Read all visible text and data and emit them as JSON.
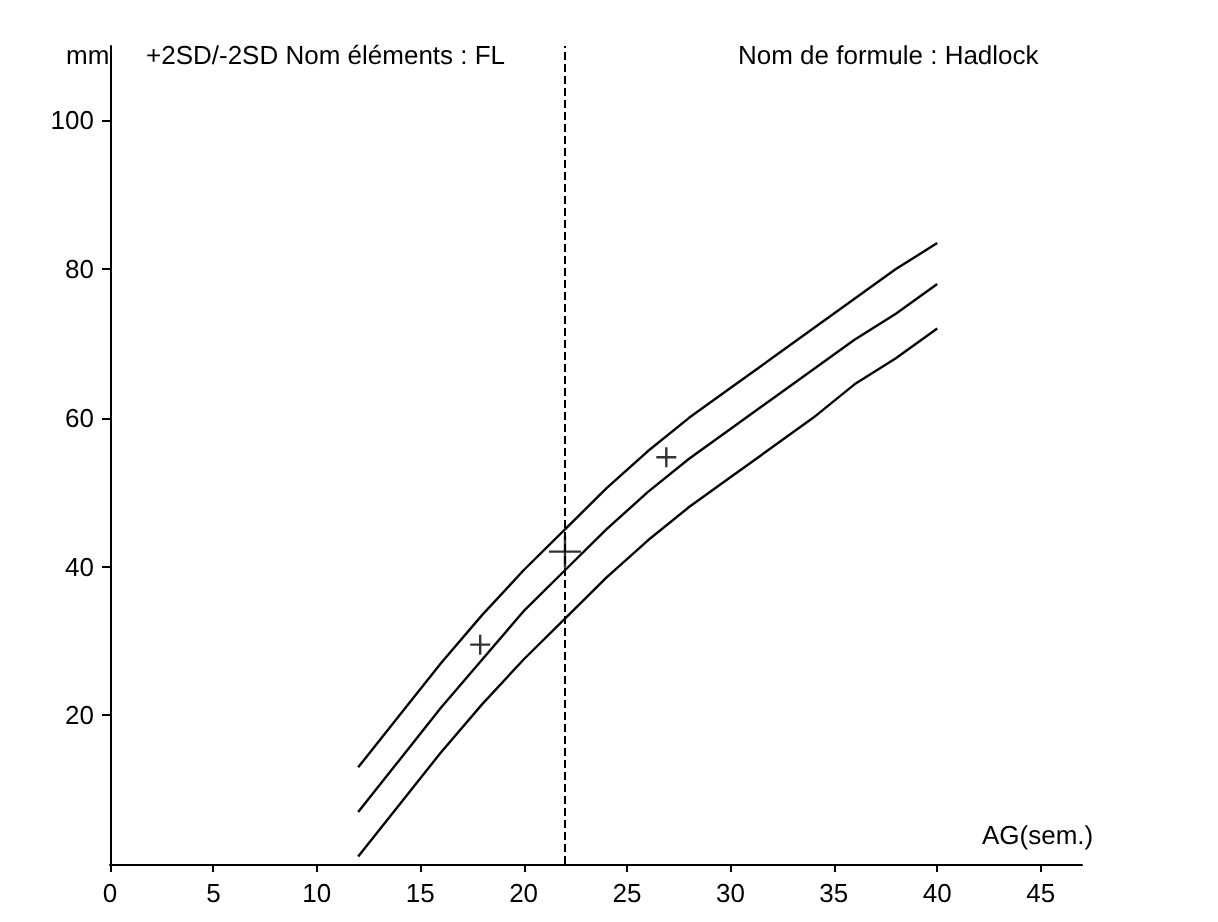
{
  "chart_data": {
    "type": "line",
    "title": "+2SD/-2SD Nom éléments : FL",
    "subtitle": "Nom de formule : Hadlock",
    "xlabel": "AG(sem.)",
    "ylabel": "mm",
    "x": [
      12,
      14,
      16,
      18,
      20,
      22,
      24,
      26,
      28,
      30,
      32,
      34,
      36,
      38,
      40
    ],
    "series": [
      {
        "color": "#000000",
        "values": [
          13,
          20,
          27,
          33.5,
          39.5,
          45,
          50.5,
          55.5,
          60,
          64,
          68,
          72,
          76,
          80,
          83.5
        ]
      },
      {
        "color": "#000000",
        "values": [
          7,
          14,
          21,
          27.5,
          34,
          39.5,
          45,
          50,
          54.5,
          58.5,
          62.5,
          66.5,
          70.5,
          74,
          78
        ]
      },
      {
        "color": "#000000",
        "values": [
          1,
          8,
          15,
          21.5,
          27.5,
          33,
          38.5,
          43.5,
          48,
          52,
          56,
          60,
          64.5,
          68,
          72
        ]
      },
      {
        "type": "scatter",
        "color": "#000000",
        "marker": "cross",
        "x": [
          17.9,
          22,
          26.9
        ],
        "values": [
          29.5,
          42,
          54.7
        ]
      }
    ],
    "marker": "none",
    "line_style": "solid",
    "grid": false,
    "xlim": [
      0,
      47
    ],
    "xticks": [
      0,
      5,
      10,
      15,
      20,
      25,
      30,
      35,
      40,
      45
    ],
    "ylim": [
      0,
      110
    ],
    "yticks": [
      20,
      40,
      60,
      80,
      100
    ],
    "ref_lines": [
      {
        "axis": "x",
        "value": 22,
        "color": "#000000",
        "line_style": "dashed"
      }
    ]
  }
}
